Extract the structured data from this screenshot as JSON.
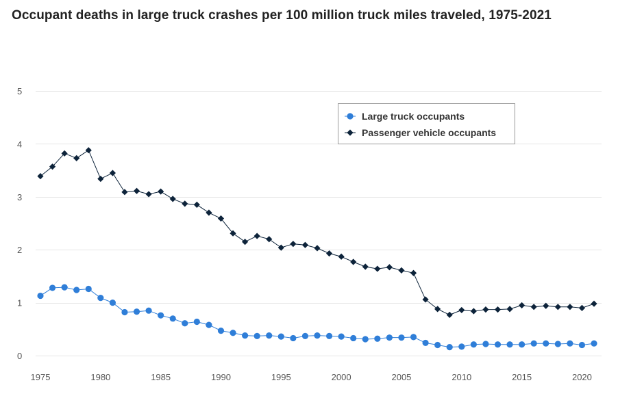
{
  "colors": {
    "truck": "#2f7ed8",
    "passenger": "#0d233a",
    "grid": "#e6e6e6",
    "legend_border": "#999999"
  },
  "chart_data": {
    "type": "line",
    "title": "Occupant deaths in large truck crashes per 100 million truck miles traveled, 1975-2021",
    "xlabel": "",
    "ylabel": "",
    "xlim": [
      1975,
      2021
    ],
    "ylim": [
      0,
      5
    ],
    "yticks": [
      0,
      1,
      2,
      3,
      4,
      5
    ],
    "xticks": [
      1975,
      1980,
      1985,
      1990,
      1995,
      2000,
      2005,
      2010,
      2015,
      2020
    ],
    "grid": "horizontal",
    "legend_position": "top-right",
    "x": [
      1975,
      1976,
      1977,
      1978,
      1979,
      1980,
      1981,
      1982,
      1983,
      1984,
      1985,
      1986,
      1987,
      1988,
      1989,
      1990,
      1991,
      1992,
      1993,
      1994,
      1995,
      1996,
      1997,
      1998,
      1999,
      2000,
      2001,
      2002,
      2003,
      2004,
      2005,
      2006,
      2007,
      2008,
      2009,
      2010,
      2011,
      2012,
      2013,
      2014,
      2015,
      2016,
      2017,
      2018,
      2019,
      2020,
      2021
    ],
    "series": [
      {
        "name": "Large truck occupants",
        "marker": "circle",
        "color": "#2f7ed8",
        "values": [
          1.13,
          1.28,
          1.29,
          1.24,
          1.26,
          1.09,
          1.0,
          0.82,
          0.83,
          0.85,
          0.76,
          0.7,
          0.61,
          0.64,
          0.58,
          0.47,
          0.43,
          0.38,
          0.37,
          0.38,
          0.36,
          0.33,
          0.37,
          0.38,
          0.37,
          0.36,
          0.33,
          0.31,
          0.32,
          0.34,
          0.34,
          0.35,
          0.24,
          0.2,
          0.16,
          0.17,
          0.21,
          0.22,
          0.21,
          0.21,
          0.21,
          0.23,
          0.23,
          0.22,
          0.23,
          0.2,
          0.23
        ]
      },
      {
        "name": "Passenger vehicle occupants",
        "marker": "diamond",
        "color": "#0d233a",
        "values": [
          3.39,
          3.57,
          3.82,
          3.73,
          3.88,
          3.34,
          3.45,
          3.09,
          3.11,
          3.05,
          3.1,
          2.96,
          2.87,
          2.85,
          2.7,
          2.59,
          2.31,
          2.15,
          2.26,
          2.2,
          2.04,
          2.11,
          2.09,
          2.03,
          1.93,
          1.87,
          1.77,
          1.68,
          1.64,
          1.67,
          1.61,
          1.56,
          1.06,
          0.88,
          0.77,
          0.86,
          0.84,
          0.87,
          0.87,
          0.88,
          0.95,
          0.92,
          0.94,
          0.92,
          0.92,
          0.9,
          0.98
        ]
      }
    ]
  }
}
